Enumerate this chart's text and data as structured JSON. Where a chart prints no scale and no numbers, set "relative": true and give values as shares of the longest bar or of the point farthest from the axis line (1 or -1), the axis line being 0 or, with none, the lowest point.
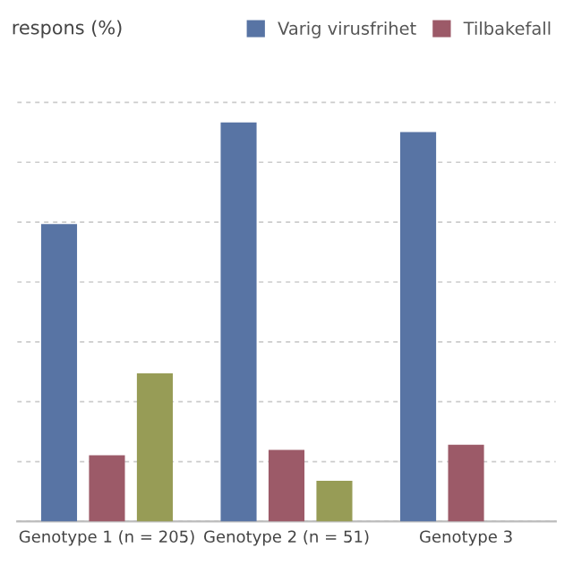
{
  "chart_data": {
    "type": "bar",
    "title": "respons (%)",
    "relative": true,
    "categories": [
      "Genotype 1 (n = 205)",
      "Genotype 2 (n = 51)",
      "Genotype 3"
    ],
    "series": [
      {
        "name": "Varig virusfrihet",
        "color": "#5874a4",
        "values": [
          0.745,
          1,
          0.976
        ]
      },
      {
        "name": "Tilbakefall",
        "color": "#9c5a68",
        "values": [
          0.166,
          0.179,
          0.192
        ]
      },
      {
        "color": "#979c56",
        "values": [
          0.371,
          0.102,
          null
        ]
      }
    ],
    "grid": "y",
    "legend": "top right"
  }
}
